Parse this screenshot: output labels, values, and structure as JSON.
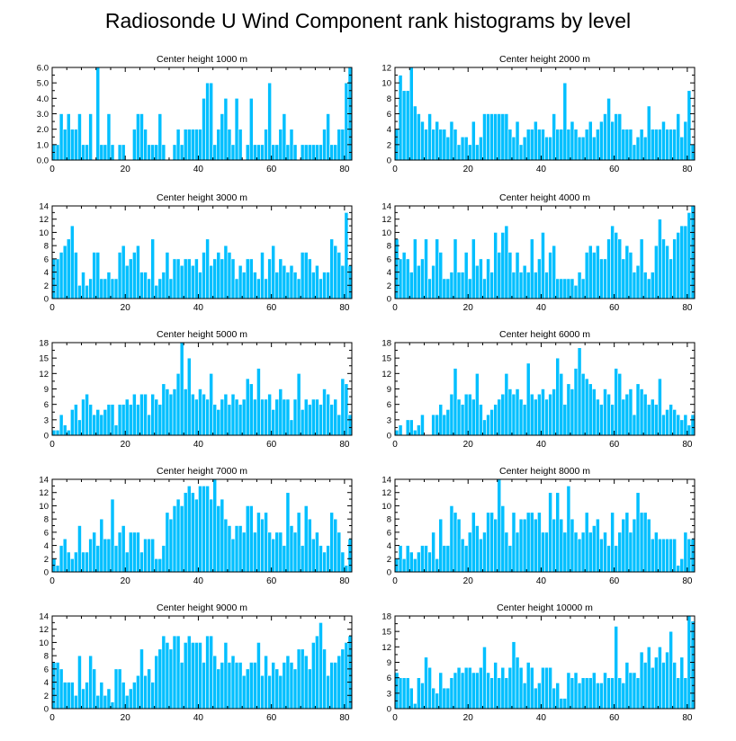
{
  "title": "Radiosonde U Wind Component rank histograms by level",
  "colors": {
    "bar": "#00BFFF",
    "bar_edge": "#FFFFFF",
    "axis": "#000000"
  },
  "chart_data": [
    {
      "type": "bar",
      "title": "Center height 1000 m",
      "xlim": [
        0,
        82
      ],
      "ylim": [
        0,
        6
      ],
      "xticks": [
        "0",
        "20",
        "40",
        "60",
        "80"
      ],
      "yticks": [
        "0.0",
        "1.0",
        "2.0",
        "3.0",
        "4.0",
        "5.0",
        "6.0"
      ],
      "ytick_values": [
        0,
        1,
        2,
        3,
        4,
        5,
        6
      ],
      "values": [
        1,
        1,
        3,
        2,
        3,
        2,
        2,
        3,
        1,
        1,
        3,
        0,
        6,
        1,
        1,
        3,
        1,
        0,
        1,
        1,
        0,
        0,
        2,
        3,
        3,
        2,
        1,
        1,
        1,
        3,
        1,
        0,
        0,
        1,
        2,
        1,
        2,
        2,
        2,
        2,
        2,
        4,
        5,
        5,
        1,
        2,
        3,
        4,
        2,
        1,
        4,
        2,
        0,
        1,
        4,
        1,
        1,
        1,
        2,
        5,
        1,
        1,
        2,
        3,
        1,
        2,
        1,
        0,
        1,
        1,
        1,
        1,
        1,
        1,
        2,
        3,
        1,
        1,
        2,
        2,
        5,
        6
      ]
    },
    {
      "type": "bar",
      "title": "Center height 2000 m",
      "xlim": [
        0,
        82
      ],
      "ylim": [
        0,
        12
      ],
      "xticks": [
        "0",
        "20",
        "40",
        "60",
        "80"
      ],
      "yticks": [
        "0",
        "2",
        "4",
        "6",
        "8",
        "10",
        "12"
      ],
      "ytick_values": [
        0,
        2,
        4,
        6,
        8,
        10,
        12
      ],
      "values": [
        4,
        11,
        9,
        9,
        12,
        7,
        6,
        5,
        4,
        6,
        4,
        5,
        4,
        4,
        3,
        5,
        4,
        2,
        3,
        3,
        2,
        5,
        2,
        3,
        6,
        6,
        6,
        6,
        6,
        6,
        6,
        4,
        3,
        5,
        2,
        3,
        4,
        4,
        5,
        4,
        4,
        3,
        3,
        6,
        4,
        4,
        10,
        4,
        5,
        4,
        3,
        3,
        4,
        5,
        3,
        4,
        5,
        6,
        8,
        5,
        6,
        6,
        4,
        4,
        4,
        2,
        3,
        4,
        3,
        7,
        4,
        4,
        4,
        5,
        4,
        4,
        4,
        6,
        3,
        5,
        9,
        2
      ]
    },
    {
      "type": "bar",
      "title": "Center height 3000 m",
      "xlim": [
        0,
        82
      ],
      "ylim": [
        0,
        14
      ],
      "xticks": [
        "0",
        "20",
        "40",
        "60",
        "80"
      ],
      "yticks": [
        "0",
        "2",
        "4",
        "6",
        "8",
        "10",
        "12",
        "14"
      ],
      "ytick_values": [
        0,
        2,
        4,
        6,
        8,
        10,
        12,
        14
      ],
      "values": [
        6,
        6,
        7,
        8,
        9,
        11,
        7,
        2,
        4,
        2,
        3,
        7,
        7,
        3,
        3,
        4,
        3,
        3,
        7,
        8,
        5,
        6,
        7,
        8,
        4,
        4,
        3,
        9,
        2,
        3,
        4,
        7,
        3,
        6,
        6,
        5,
        6,
        6,
        5,
        6,
        4,
        7,
        9,
        5,
        6,
        7,
        6,
        8,
        7,
        6,
        3,
        5,
        4,
        6,
        6,
        4,
        3,
        7,
        3,
        6,
        8,
        4,
        6,
        5,
        4,
        5,
        4,
        3,
        7,
        7,
        6,
        4,
        5,
        3,
        4,
        4,
        9,
        8,
        7,
        5,
        13,
        5
      ]
    },
    {
      "type": "bar",
      "title": "Center height 4000 m",
      "xlim": [
        0,
        82
      ],
      "ylim": [
        0,
        14
      ],
      "xticks": [
        "0",
        "20",
        "40",
        "60",
        "80"
      ],
      "yticks": [
        "0",
        "2",
        "4",
        "6",
        "8",
        "10",
        "12",
        "14"
      ],
      "ytick_values": [
        0,
        2,
        4,
        6,
        8,
        10,
        12,
        14
      ],
      "values": [
        9,
        6,
        7,
        6,
        4,
        9,
        5,
        6,
        9,
        3,
        5,
        9,
        7,
        3,
        3,
        4,
        9,
        4,
        4,
        7,
        3,
        9,
        5,
        6,
        3,
        6,
        4,
        10,
        7,
        10,
        11,
        7,
        4,
        7,
        4,
        5,
        4,
        9,
        4,
        6,
        10,
        4,
        7,
        8,
        3,
        3,
        3,
        3,
        3,
        2,
        4,
        3,
        7,
        8,
        7,
        8,
        6,
        6,
        9,
        11,
        10,
        9,
        6,
        8,
        7,
        4,
        5,
        9,
        4,
        3,
        4,
        8,
        12,
        9,
        8,
        6,
        9,
        10,
        11,
        11,
        13,
        14
      ]
    },
    {
      "type": "bar",
      "title": "Center height 5000 m",
      "xlim": [
        0,
        82
      ],
      "ylim": [
        0,
        18
      ],
      "xticks": [
        "0",
        "20",
        "40",
        "60",
        "80"
      ],
      "yticks": [
        "0",
        "3",
        "6",
        "9",
        "12",
        "15",
        "18"
      ],
      "ytick_values": [
        0,
        3,
        6,
        9,
        12,
        15,
        18
      ],
      "values": [
        1,
        1,
        4,
        2,
        1,
        5,
        6,
        3,
        7,
        8,
        6,
        4,
        5,
        4,
        5,
        6,
        6,
        2,
        6,
        6,
        7,
        6,
        8,
        6,
        8,
        8,
        4,
        8,
        7,
        6,
        10,
        9,
        8,
        9,
        12,
        18,
        9,
        15,
        8,
        7,
        9,
        8,
        7,
        12,
        6,
        5,
        7,
        8,
        6,
        8,
        7,
        6,
        7,
        11,
        10,
        7,
        13,
        7,
        7,
        8,
        5,
        7,
        9,
        7,
        7,
        3,
        7,
        12,
        5,
        7,
        6,
        7,
        7,
        6,
        9,
        8,
        6,
        7,
        4,
        11,
        10,
        4
      ]
    },
    {
      "type": "bar",
      "title": "Center height 6000 m",
      "xlim": [
        0,
        82
      ],
      "ylim": [
        0,
        18
      ],
      "xticks": [
        "0",
        "20",
        "40",
        "60",
        "80"
      ],
      "yticks": [
        "0",
        "3",
        "6",
        "9",
        "12",
        "15",
        "18"
      ],
      "ytick_values": [
        0,
        3,
        6,
        9,
        12,
        15,
        18
      ],
      "values": [
        1,
        2,
        0,
        3,
        3,
        1,
        2,
        4,
        0,
        0,
        4,
        4,
        6,
        4,
        5,
        8,
        13,
        7,
        6,
        8,
        8,
        7,
        12,
        6,
        3,
        4,
        5,
        6,
        7,
        8,
        12,
        9,
        8,
        9,
        7,
        6,
        14,
        8,
        7,
        8,
        9,
        7,
        8,
        9,
        15,
        12,
        6,
        10,
        9,
        13,
        17,
        12,
        11,
        10,
        9,
        7,
        6,
        9,
        8,
        6,
        13,
        12,
        7,
        8,
        9,
        4,
        10,
        9,
        8,
        6,
        7,
        6,
        11,
        4,
        5,
        6,
        5,
        4,
        3,
        4,
        2,
        4
      ]
    },
    {
      "type": "bar",
      "title": "Center height 7000 m",
      "xlim": [
        0,
        82
      ],
      "ylim": [
        0,
        14
      ],
      "xticks": [
        "0",
        "20",
        "40",
        "60",
        "80"
      ],
      "yticks": [
        "0",
        "2",
        "4",
        "6",
        "8",
        "10",
        "12",
        "14"
      ],
      "ytick_values": [
        0,
        2,
        4,
        6,
        8,
        10,
        12,
        14
      ],
      "values": [
        2,
        1,
        4,
        5,
        3,
        2,
        3,
        7,
        3,
        3,
        5,
        6,
        4,
        8,
        5,
        5,
        11,
        4,
        6,
        7,
        3,
        6,
        6,
        6,
        3,
        5,
        5,
        5,
        2,
        2,
        4,
        9,
        8,
        10,
        11,
        10,
        12,
        13,
        12,
        11,
        13,
        13,
        13,
        11,
        14,
        10,
        11,
        8,
        7,
        5,
        7,
        7,
        6,
        10,
        10,
        6,
        9,
        8,
        9,
        6,
        5,
        6,
        6,
        4,
        12,
        7,
        6,
        9,
        4,
        10,
        8,
        5,
        6,
        4,
        3,
        4,
        9,
        8,
        6,
        3,
        1,
        5
      ]
    },
    {
      "type": "bar",
      "title": "Center height 8000 m",
      "xlim": [
        0,
        82
      ],
      "ylim": [
        0,
        14
      ],
      "xticks": [
        "0",
        "20",
        "40",
        "60",
        "80"
      ],
      "yticks": [
        "0",
        "2",
        "4",
        "6",
        "8",
        "10",
        "12",
        "14"
      ],
      "ytick_values": [
        0,
        2,
        4,
        6,
        8,
        10,
        12,
        14
      ],
      "values": [
        2,
        4,
        2,
        4,
        3,
        2,
        3,
        4,
        4,
        3,
        6,
        2,
        8,
        4,
        4,
        10,
        9,
        8,
        5,
        4,
        6,
        9,
        7,
        5,
        6,
        9,
        9,
        8,
        14,
        10,
        6,
        4,
        9,
        6,
        8,
        8,
        9,
        9,
        8,
        9,
        6,
        6,
        12,
        8,
        12,
        8,
        6,
        13,
        8,
        6,
        5,
        6,
        9,
        6,
        7,
        8,
        5,
        6,
        4,
        9,
        4,
        6,
        8,
        9,
        6,
        8,
        12,
        9,
        9,
        8,
        5,
        6,
        5,
        5,
        5,
        5,
        5,
        1,
        2,
        6,
        5,
        5
      ]
    },
    {
      "type": "bar",
      "title": "Center height 9000 m",
      "xlim": [
        0,
        82
      ],
      "ylim": [
        0,
        14
      ],
      "xticks": [
        "0",
        "20",
        "40",
        "60",
        "80"
      ],
      "yticks": [
        "0",
        "2",
        "4",
        "6",
        "8",
        "10",
        "12",
        "14"
      ],
      "ytick_values": [
        0,
        2,
        4,
        6,
        8,
        10,
        12,
        14
      ],
      "values": [
        7,
        7,
        6,
        4,
        4,
        4,
        2,
        8,
        3,
        4,
        8,
        6,
        2,
        4,
        2,
        3,
        1,
        6,
        6,
        4,
        2,
        3,
        4,
        5,
        9,
        5,
        6,
        4,
        8,
        9,
        11,
        10,
        9,
        11,
        11,
        7,
        10,
        11,
        10,
        10,
        10,
        7,
        11,
        11,
        8,
        6,
        7,
        10,
        7,
        8,
        7,
        7,
        5,
        6,
        7,
        7,
        10,
        5,
        8,
        5,
        7,
        6,
        5,
        7,
        8,
        7,
        6,
        9,
        9,
        8,
        6,
        10,
        11,
        13,
        9,
        5,
        7,
        7,
        8,
        9,
        10,
        11
      ]
    },
    {
      "type": "bar",
      "title": "Center height 10000 m",
      "xlim": [
        0,
        82
      ],
      "ylim": [
        0,
        18
      ],
      "xticks": [
        "0",
        "20",
        "40",
        "60",
        "80"
      ],
      "yticks": [
        "0",
        "3",
        "6",
        "9",
        "12",
        "15",
        "18"
      ],
      "ytick_values": [
        0,
        3,
        6,
        9,
        12,
        15,
        18
      ],
      "values": [
        7,
        6,
        6,
        6,
        4,
        1,
        6,
        5,
        10,
        8,
        4,
        3,
        7,
        4,
        4,
        6,
        7,
        8,
        7,
        8,
        8,
        7,
        7,
        8,
        12,
        7,
        6,
        9,
        6,
        8,
        6,
        8,
        13,
        10,
        8,
        5,
        9,
        8,
        4,
        5,
        8,
        8,
        8,
        4,
        5,
        2,
        2,
        7,
        6,
        7,
        5,
        6,
        6,
        6,
        7,
        5,
        5,
        7,
        6,
        6,
        16,
        6,
        5,
        9,
        7,
        7,
        6,
        11,
        9,
        12,
        8,
        10,
        12,
        9,
        11,
        15,
        9,
        6,
        10,
        6,
        18,
        17
      ]
    }
  ]
}
